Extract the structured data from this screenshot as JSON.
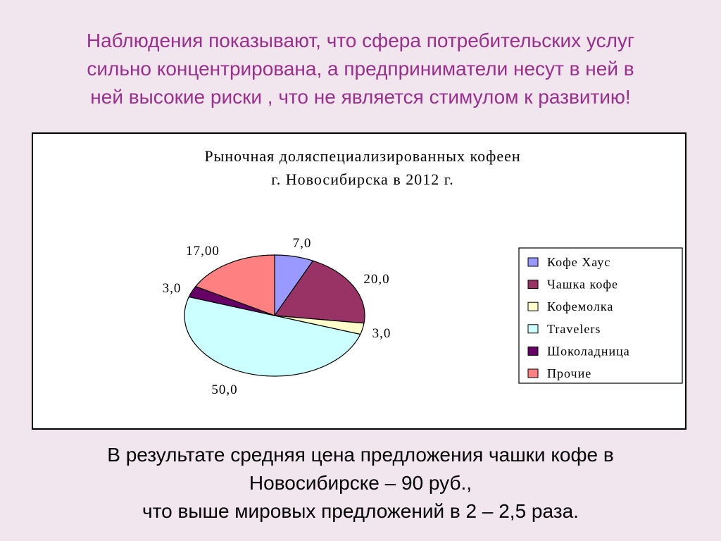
{
  "heading": {
    "lines": [
      "Наблюдения показывают, что сфера потребительских услуг",
      "сильно концентрирована, а предприниматели несут в ней в",
      "ней высокие риски , что не является стимулом к развитию!"
    ]
  },
  "footer": {
    "lines": [
      "В результате средняя цена предложения чашки кофе в",
      "Новосибирске  – 90 руб.,",
      "что выше мировых предложений в 2 – 2,5 раза."
    ]
  },
  "chart_data": {
    "type": "pie",
    "title_lines": [
      "Рыночная доляспециализированных кофеен",
      "г. Новосибирска  в 2012 г."
    ],
    "legend_position": "right",
    "slices": [
      {
        "name": "Кофе Хаус",
        "value": 7.0,
        "label": "7,0",
        "color": "#9999ff"
      },
      {
        "name": "Чашка кофе",
        "value": 20.0,
        "label": "20,0",
        "color": "#993366"
      },
      {
        "name": "Кофемолка",
        "value": 3.0,
        "label": "3,0",
        "color": "#ffffcc"
      },
      {
        "name": "Travelers",
        "value": 50.0,
        "label": "50,0",
        "color": "#ccffff"
      },
      {
        "name": "Шоколадница",
        "value": 3.0,
        "label": "3,0",
        "color": "#660066"
      },
      {
        "name": "Прочие",
        "value": 17.0,
        "label": "17,00",
        "color": "#ff8080"
      }
    ]
  }
}
